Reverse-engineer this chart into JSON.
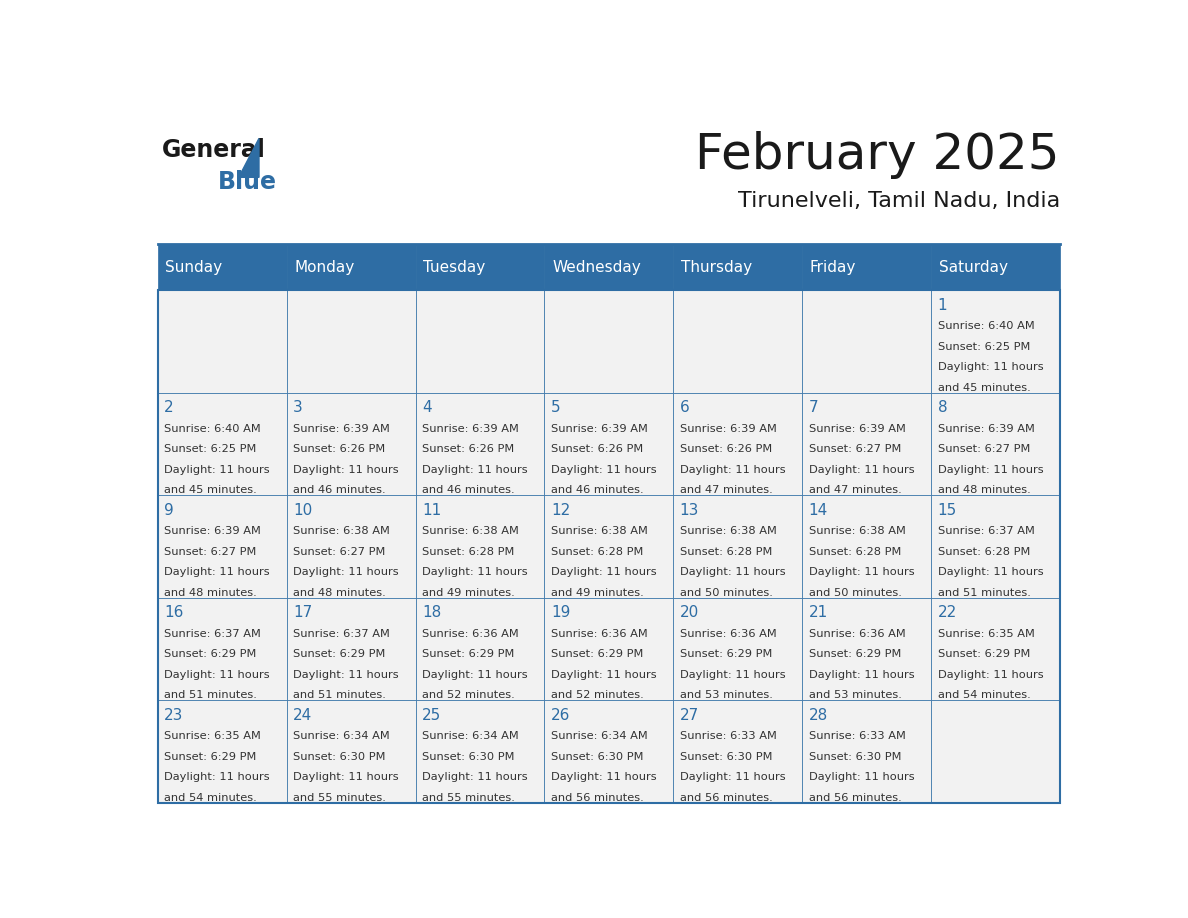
{
  "title": "February 2025",
  "subtitle": "Tirunelveli, Tamil Nadu, India",
  "header_bg": "#2E6DA4",
  "header_text_color": "#FFFFFF",
  "cell_bg": "#F2F2F2",
  "border_color": "#2E6DA4",
  "title_color": "#1a1a1a",
  "subtitle_color": "#1a1a1a",
  "day_number_color": "#2E6DA4",
  "cell_text_color": "#333333",
  "days_of_week": [
    "Sunday",
    "Monday",
    "Tuesday",
    "Wednesday",
    "Thursday",
    "Friday",
    "Saturday"
  ],
  "calendar": [
    [
      null,
      null,
      null,
      null,
      null,
      null,
      {
        "day": 1,
        "sunrise": "6:40 AM",
        "sunset": "6:25 PM",
        "daylight": "11 hours and 45 minutes."
      }
    ],
    [
      {
        "day": 2,
        "sunrise": "6:40 AM",
        "sunset": "6:25 PM",
        "daylight": "11 hours and 45 minutes."
      },
      {
        "day": 3,
        "sunrise": "6:39 AM",
        "sunset": "6:26 PM",
        "daylight": "11 hours and 46 minutes."
      },
      {
        "day": 4,
        "sunrise": "6:39 AM",
        "sunset": "6:26 PM",
        "daylight": "11 hours and 46 minutes."
      },
      {
        "day": 5,
        "sunrise": "6:39 AM",
        "sunset": "6:26 PM",
        "daylight": "11 hours and 46 minutes."
      },
      {
        "day": 6,
        "sunrise": "6:39 AM",
        "sunset": "6:26 PM",
        "daylight": "11 hours and 47 minutes."
      },
      {
        "day": 7,
        "sunrise": "6:39 AM",
        "sunset": "6:27 PM",
        "daylight": "11 hours and 47 minutes."
      },
      {
        "day": 8,
        "sunrise": "6:39 AM",
        "sunset": "6:27 PM",
        "daylight": "11 hours and 48 minutes."
      }
    ],
    [
      {
        "day": 9,
        "sunrise": "6:39 AM",
        "sunset": "6:27 PM",
        "daylight": "11 hours and 48 minutes."
      },
      {
        "day": 10,
        "sunrise": "6:38 AM",
        "sunset": "6:27 PM",
        "daylight": "11 hours and 48 minutes."
      },
      {
        "day": 11,
        "sunrise": "6:38 AM",
        "sunset": "6:28 PM",
        "daylight": "11 hours and 49 minutes."
      },
      {
        "day": 12,
        "sunrise": "6:38 AM",
        "sunset": "6:28 PM",
        "daylight": "11 hours and 49 minutes."
      },
      {
        "day": 13,
        "sunrise": "6:38 AM",
        "sunset": "6:28 PM",
        "daylight": "11 hours and 50 minutes."
      },
      {
        "day": 14,
        "sunrise": "6:38 AM",
        "sunset": "6:28 PM",
        "daylight": "11 hours and 50 minutes."
      },
      {
        "day": 15,
        "sunrise": "6:37 AM",
        "sunset": "6:28 PM",
        "daylight": "11 hours and 51 minutes."
      }
    ],
    [
      {
        "day": 16,
        "sunrise": "6:37 AM",
        "sunset": "6:29 PM",
        "daylight": "11 hours and 51 minutes."
      },
      {
        "day": 17,
        "sunrise": "6:37 AM",
        "sunset": "6:29 PM",
        "daylight": "11 hours and 51 minutes."
      },
      {
        "day": 18,
        "sunrise": "6:36 AM",
        "sunset": "6:29 PM",
        "daylight": "11 hours and 52 minutes."
      },
      {
        "day": 19,
        "sunrise": "6:36 AM",
        "sunset": "6:29 PM",
        "daylight": "11 hours and 52 minutes."
      },
      {
        "day": 20,
        "sunrise": "6:36 AM",
        "sunset": "6:29 PM",
        "daylight": "11 hours and 53 minutes."
      },
      {
        "day": 21,
        "sunrise": "6:36 AM",
        "sunset": "6:29 PM",
        "daylight": "11 hours and 53 minutes."
      },
      {
        "day": 22,
        "sunrise": "6:35 AM",
        "sunset": "6:29 PM",
        "daylight": "11 hours and 54 minutes."
      }
    ],
    [
      {
        "day": 23,
        "sunrise": "6:35 AM",
        "sunset": "6:29 PM",
        "daylight": "11 hours and 54 minutes."
      },
      {
        "day": 24,
        "sunrise": "6:34 AM",
        "sunset": "6:30 PM",
        "daylight": "11 hours and 55 minutes."
      },
      {
        "day": 25,
        "sunrise": "6:34 AM",
        "sunset": "6:30 PM",
        "daylight": "11 hours and 55 minutes."
      },
      {
        "day": 26,
        "sunrise": "6:34 AM",
        "sunset": "6:30 PM",
        "daylight": "11 hours and 56 minutes."
      },
      {
        "day": 27,
        "sunrise": "6:33 AM",
        "sunset": "6:30 PM",
        "daylight": "11 hours and 56 minutes."
      },
      {
        "day": 28,
        "sunrise": "6:33 AM",
        "sunset": "6:30 PM",
        "daylight": "11 hours and 56 minutes."
      },
      null
    ]
  ]
}
